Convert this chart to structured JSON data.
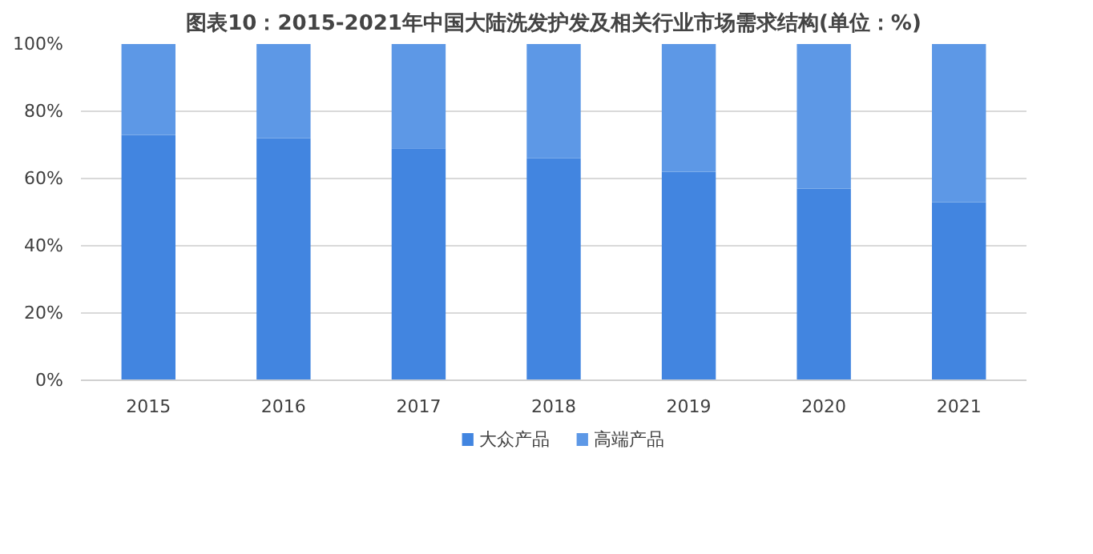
{
  "chart_data": {
    "type": "bar",
    "title": "图表10：2015-2021年中国大陆洗发护发及相关行业市场需求结构(单位：%)",
    "categories": [
      "2015",
      "2016",
      "2017",
      "2018",
      "2019",
      "2020",
      "2021"
    ],
    "stacked": true,
    "series": [
      {
        "name": "大众产品",
        "color": "#4285e0",
        "values": [
          73,
          72,
          69,
          66,
          62,
          57,
          53
        ]
      },
      {
        "name": "高端产品",
        "color": "#5d98e6",
        "values": [
          27,
          28,
          31,
          34,
          38,
          43,
          47
        ]
      }
    ],
    "ylim": [
      0,
      100
    ],
    "yticks": [
      {
        "value": 0,
        "label": "0%"
      },
      {
        "value": 20,
        "label": "20%"
      },
      {
        "value": 40,
        "label": "40%"
      },
      {
        "value": 60,
        "label": "60%"
      },
      {
        "value": 80,
        "label": "80%"
      },
      {
        "value": 100,
        "label": "100%"
      }
    ],
    "grid": "y",
    "legend": "bottom"
  }
}
